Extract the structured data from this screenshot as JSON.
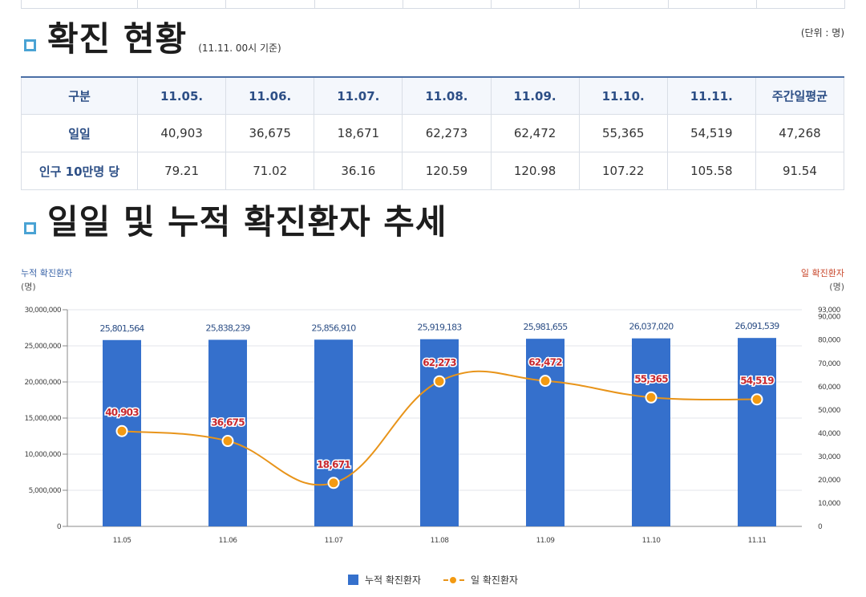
{
  "status_section": {
    "title": "확진 현황",
    "subtitle": "(11.11. 00시 기준)",
    "unit": "(단위 : 명)",
    "headers": [
      "구분",
      "11.05.",
      "11.06.",
      "11.07.",
      "11.08.",
      "11.09.",
      "11.10.",
      "11.11.",
      "주간일평균"
    ],
    "rows": [
      {
        "label": "일일",
        "values": [
          "40,903",
          "36,675",
          "18,671",
          "62,273",
          "62,472",
          "55,365",
          "54,519",
          "47,268"
        ]
      },
      {
        "label": "인구 10만명 당",
        "values": [
          "79.21",
          "71.02",
          "36.16",
          "120.59",
          "120.98",
          "107.22",
          "105.58",
          "91.54"
        ]
      }
    ]
  },
  "trend_section": {
    "title": "일일 및 누적 확진환자 추세"
  },
  "chart_data": {
    "type": "bar",
    "categories": [
      "11.05",
      "11.06",
      "11.07",
      "11.08",
      "11.09",
      "11.10",
      "11.11"
    ],
    "series": [
      {
        "name": "누적 확진환자",
        "type": "bar",
        "axis": "left",
        "color": "#3570cc",
        "values": [
          25801564,
          25838239,
          25856910,
          25919183,
          25981655,
          26037020,
          26091539
        ],
        "labels": [
          "25,801,564",
          "25,838,239",
          "25,856,910",
          "25,919,183",
          "25,981,655",
          "26,037,020",
          "26,091,539"
        ]
      },
      {
        "name": "일 확진환자",
        "type": "line",
        "axis": "right",
        "color": "#e8941a",
        "values": [
          40903,
          36675,
          18671,
          62273,
          62472,
          55365,
          54519
        ],
        "labels": [
          "40,903",
          "36,675",
          "18,671",
          "62,273",
          "62,472",
          "55,365",
          "54,519"
        ]
      }
    ],
    "left_axis": {
      "title": "누적 확진환자",
      "unit": "(명)",
      "range": [
        0,
        30000000
      ],
      "ticks": [
        0,
        5000000,
        10000000,
        15000000,
        20000000,
        25000000,
        30000000
      ],
      "tick_labels": [
        "0",
        "5,000,000",
        "10,000,000",
        "15,000,000",
        "20,000,000",
        "25,000,000",
        "30,000,000"
      ]
    },
    "right_axis": {
      "title": "일 확진환자",
      "unit": "(명)",
      "range": [
        0,
        93000
      ],
      "ticks": [
        0,
        10000,
        20000,
        30000,
        40000,
        50000,
        60000,
        70000,
        80000,
        90000,
        93000
      ],
      "tick_labels": [
        "0",
        "10,000",
        "20,000",
        "30,000",
        "40,000",
        "50,000",
        "60,000",
        "70,000",
        "80,000",
        "90,000",
        "93,000"
      ]
    },
    "legend": [
      "누적 확진환자",
      "일 확진환자"
    ],
    "colors": {
      "bar": "#3570cc",
      "line": "#e8941a",
      "point": "#f39a12",
      "point_label": "#c8282e",
      "left_axis_title": "#3a64a8",
      "right_axis_title": "#c8462a"
    }
  }
}
